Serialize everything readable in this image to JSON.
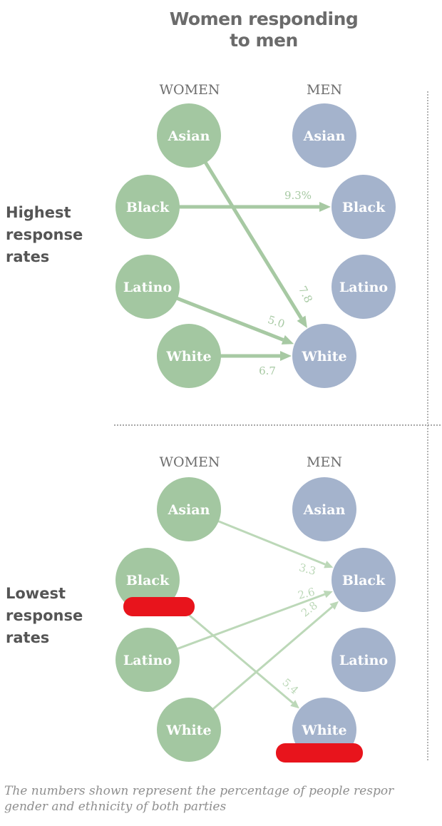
{
  "title": [
    "Women responding",
    "to men"
  ],
  "colors": {
    "women_node": "#a3c7a1",
    "men_node": "#a4b3cc",
    "strong_arrow": "#a7c9a3",
    "light_arrow": "#bcd8b8",
    "redaction": "#e8141c"
  },
  "sections": [
    {
      "label": [
        "Highest",
        "response",
        "rates"
      ],
      "women_header": "WOMEN",
      "men_header": "MEN",
      "women": [
        "Asian",
        "Black",
        "Latino",
        "White"
      ],
      "men": [
        "Asian",
        "Black",
        "Latino",
        "White"
      ],
      "links": [
        {
          "from": "Asian",
          "to": "White",
          "value": "7.8"
        },
        {
          "from": "Black",
          "to": "Black",
          "value": "9.3%"
        },
        {
          "from": "Latino",
          "to": "White",
          "value": "5.0"
        },
        {
          "from": "White",
          "to": "White",
          "value": "6.7"
        }
      ]
    },
    {
      "label": [
        "Lowest",
        "response",
        "rates"
      ],
      "women_header": "WOMEN",
      "men_header": "MEN",
      "women": [
        "Asian",
        "Black",
        "Latino",
        "White"
      ],
      "men": [
        "Asian",
        "Black",
        "Latino",
        "White"
      ],
      "links": [
        {
          "from": "Asian",
          "to": "Black",
          "value": "3.3"
        },
        {
          "from": "Latino",
          "to": "Black",
          "value": "2.6"
        },
        {
          "from": "White",
          "to": "Black",
          "value": "2.8"
        },
        {
          "from": "Black",
          "to": "White",
          "value": "5.4"
        }
      ]
    }
  ],
  "caption": [
    "The numbers shown represent the percentage of people respor",
    "gender and ethnicity of both parties"
  ]
}
